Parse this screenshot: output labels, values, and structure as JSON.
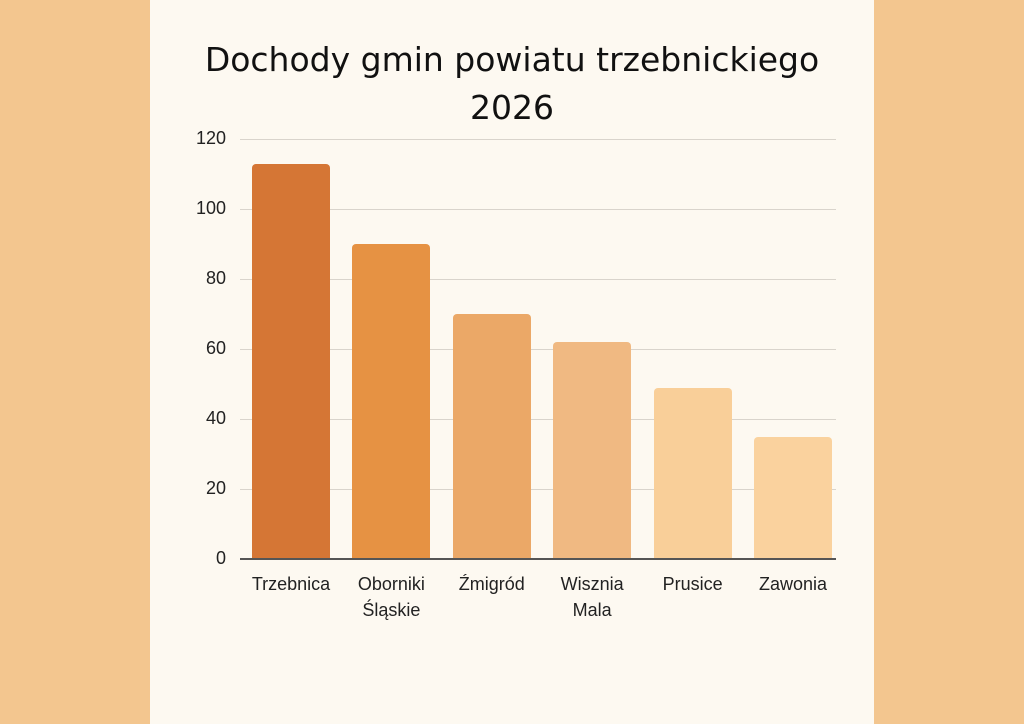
{
  "title_line1": "Dochody gmin powiatu trzebnickiego",
  "title_line2": "2026",
  "colors": {
    "background": "#f3c68f",
    "card": "#fdf9f1",
    "bars": [
      "#d57635",
      "#e69243",
      "#eba867",
      "#f0b982",
      "#f9cf99",
      "#fad29e"
    ]
  },
  "chart_data": {
    "type": "bar",
    "title": "Dochody gmin powiatu trzebnickiego 2026",
    "xlabel": "",
    "ylabel": "",
    "categories": [
      "Trzebnica",
      "Oborniki Śląskie",
      "Źmigród",
      "Wisznia Mala",
      "Prusice",
      "Zawonia"
    ],
    "values": [
      113,
      90,
      70,
      62,
      49,
      35
    ],
    "ylim": [
      0,
      120
    ],
    "yticks": [
      0,
      20,
      40,
      60,
      80,
      100,
      120
    ],
    "grid": true,
    "legend": null
  },
  "x_labels": [
    "Trzebnica",
    "Oborniki\nŚląskie",
    "Źmigród",
    "Wisznia\nMala",
    "Prusice",
    "Zawonia"
  ],
  "y_tick_labels": [
    "120",
    "100",
    "80",
    "60",
    "40",
    "20",
    "0"
  ]
}
